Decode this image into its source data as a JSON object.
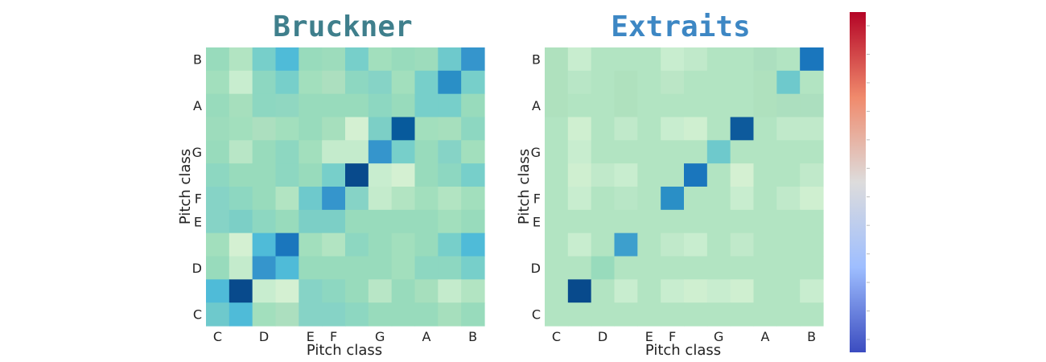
{
  "chart_data": [
    {
      "type": "heatmap",
      "title": "Bruckner",
      "title_color": "#3f7f8c",
      "xlabel": "Pitch class",
      "ylabel": "Pitch class",
      "x_tick_labels": [
        "C",
        "",
        "D",
        "",
        "E",
        "F",
        "",
        "G",
        "",
        "A",
        "",
        "B"
      ],
      "y_tick_labels_bottom_to_top": [
        "C",
        "",
        "D",
        "",
        "E",
        "F",
        "",
        "G",
        "",
        "A",
        "",
        "B"
      ],
      "rows_top_to_bottom": [
        [
          "#98dbbc",
          "#b2e4c2",
          "#77cfca",
          "#4fbbd8",
          "#98dbbc",
          "#9ddcbc",
          "#77cfca",
          "#a2dfbd",
          "#98dbbc",
          "#9ddcbc",
          "#6ec9cc",
          "#3595cc"
        ],
        [
          "#a2dfbd",
          "#c8edcf",
          "#8dd7c1",
          "#77cfca",
          "#a2dfbd",
          "#acdfbf",
          "#8dd7c1",
          "#86d3c6",
          "#a2dfbd",
          "#77cfca",
          "#2a8fc6",
          "#77cfca"
        ],
        [
          "#98dbbc",
          "#a6dfbd",
          "#8dd7c1",
          "#90d7c1",
          "#98dbbc",
          "#98dbbc",
          "#98dbbc",
          "#8dd7c1",
          "#98dbbc",
          "#77cfca",
          "#77cfca",
          "#98dbbc"
        ],
        [
          "#9ddcbc",
          "#a2dfbd",
          "#acdfbf",
          "#a2dfbd",
          "#98dbbc",
          "#a6dfbd",
          "#d4f0d2",
          "#7ccfc6",
          "#075a9c",
          "#a2dfbd",
          "#a6dfbd",
          "#8dd7c1"
        ],
        [
          "#98dbbc",
          "#b8e6c6",
          "#98dbbc",
          "#8dd7c1",
          "#a2dfbd",
          "#c4ebcc",
          "#c4ebcc",
          "#3595cc",
          "#77cfca",
          "#98dbbc",
          "#86d3c6",
          "#a2dfbd"
        ],
        [
          "#8dd7c1",
          "#98dbbc",
          "#98dbbc",
          "#8dd7c1",
          "#98dbbc",
          "#77cfca",
          "#084a8c",
          "#c8edcf",
          "#d4f0d2",
          "#98dbbc",
          "#8dd7c1",
          "#77cfca"
        ],
        [
          "#86d3c6",
          "#8dd7c1",
          "#98dbbc",
          "#b2e4c2",
          "#6ec9cc",
          "#3595cc",
          "#86d3c6",
          "#c4ebcc",
          "#b2e4c2",
          "#a2dfbd",
          "#b2e4c2",
          "#a2dfbd"
        ],
        [
          "#86d3c6",
          "#7ccfc6",
          "#8dd7c1",
          "#98dbbc",
          "#7ccfc6",
          "#7ccfc6",
          "#98dbbc",
          "#98dbbc",
          "#98dbbc",
          "#98dbbc",
          "#a2dfbd",
          "#98dbbc"
        ],
        [
          "#a2dfbd",
          "#d4f0d2",
          "#4fbbd8",
          "#1a76bd",
          "#a2dfbd",
          "#b2e4c2",
          "#8dd7c1",
          "#98dbbc",
          "#a2dfbd",
          "#98dbbc",
          "#77cfca",
          "#4fbbd8"
        ],
        [
          "#98dbbc",
          "#c4ebcc",
          "#3595cc",
          "#4fbbd8",
          "#98dbbc",
          "#98dbbc",
          "#98dbbc",
          "#98dbbc",
          "#a2dfbd",
          "#8dd7c1",
          "#8dd7c1",
          "#77cfca"
        ],
        [
          "#4fbbd8",
          "#084a8c",
          "#c8edcf",
          "#d4f0d2",
          "#86d3c6",
          "#8dd7c1",
          "#98dbbc",
          "#b8e6c6",
          "#98dbbc",
          "#a6dfbd",
          "#c4ebcc",
          "#b2e4c2"
        ],
        [
          "#6ec9cc",
          "#4fbbd8",
          "#a2dfbd",
          "#acdfbf",
          "#86d3c6",
          "#86d3c6",
          "#8dd7c1",
          "#98dbbc",
          "#98dbbc",
          "#98dbbc",
          "#a6dfbd",
          "#98dbbc"
        ]
      ]
    },
    {
      "type": "heatmap",
      "title": "Extraits",
      "title_color": "#3d87c4",
      "xlabel": "Pitch class",
      "ylabel": "Pitch class",
      "x_tick_labels": [
        "C",
        "",
        "D",
        "",
        "E",
        "F",
        "",
        "G",
        "",
        "A",
        "",
        "B"
      ],
      "y_tick_labels_bottom_to_top": [
        "C",
        "",
        "D",
        "",
        "E",
        "F",
        "",
        "G",
        "",
        "A",
        "",
        "B"
      ],
      "rows_top_to_bottom": [
        [
          "#afe1be",
          "#c8edcf",
          "#b2e4c2",
          "#b2e4c2",
          "#b2e4c2",
          "#c8edcf",
          "#c0e9ca",
          "#b2e4c2",
          "#b2e4c2",
          "#acdfbf",
          "#b2e4c2",
          "#1a76bd"
        ],
        [
          "#afe1be",
          "#b8e6c6",
          "#b2e4c2",
          "#afe1be",
          "#b2e4c2",
          "#bbe6c6",
          "#b2e4c2",
          "#b2e4c2",
          "#b2e4c2",
          "#afe1be",
          "#6ec9cc",
          "#b2e4c2"
        ],
        [
          "#afe1be",
          "#b2e4c2",
          "#b2e4c2",
          "#afe1be",
          "#b2e4c2",
          "#b2e4c2",
          "#b2e4c2",
          "#b2e4c2",
          "#b2e4c2",
          "#afe1be",
          "#acdfbf",
          "#acdfbf"
        ],
        [
          "#b2e4c2",
          "#cfefd0",
          "#b2e4c2",
          "#c0e9ca",
          "#b2e4c2",
          "#c8edcf",
          "#cfefd0",
          "#b2e4c2",
          "#0d5a9c",
          "#b2e4c2",
          "#c0e9ca",
          "#c0e9ca"
        ],
        [
          "#b2e4c2",
          "#c8edcf",
          "#b2e4c2",
          "#b2e4c2",
          "#b2e4c2",
          "#b2e4c2",
          "#b2e4c2",
          "#6ec9cc",
          "#b2e4c2",
          "#b2e4c2",
          "#b2e4c2",
          "#b2e4c2"
        ],
        [
          "#b2e4c2",
          "#cfefd0",
          "#c0e9ca",
          "#c8edcf",
          "#b2e4c2",
          "#b2e4c2",
          "#1a76bd",
          "#b2e4c2",
          "#d4f0d2",
          "#b2e4c2",
          "#b2e4c2",
          "#c0e9ca"
        ],
        [
          "#b2e4c2",
          "#c8edcf",
          "#b2e4c2",
          "#b8e6c6",
          "#b2e4c2",
          "#2a8fc6",
          "#b2e4c2",
          "#b2e4c2",
          "#c8edcf",
          "#b2e4c2",
          "#c0e9ca",
          "#cfefd0"
        ],
        [
          "#b2e4c2",
          "#b2e4c2",
          "#b2e4c2",
          "#b2e4c2",
          "#b2e4c2",
          "#b2e4c2",
          "#b2e4c2",
          "#b2e4c2",
          "#b2e4c2",
          "#b2e4c2",
          "#b2e4c2",
          "#b2e4c2"
        ],
        [
          "#b2e4c2",
          "#c8edcf",
          "#b2e4c2",
          "#3d9fcd",
          "#b2e4c2",
          "#c0e9ca",
          "#c8edcf",
          "#b2e4c2",
          "#c0e9ca",
          "#b2e4c2",
          "#b2e4c2",
          "#b2e4c2"
        ],
        [
          "#b2e4c2",
          "#b2e4c2",
          "#98dbbc",
          "#b2e4c2",
          "#b2e4c2",
          "#b2e4c2",
          "#b2e4c2",
          "#b2e4c2",
          "#b2e4c2",
          "#b2e4c2",
          "#b2e4c2",
          "#b2e4c2"
        ],
        [
          "#b2e4c2",
          "#084a8c",
          "#b2e4c2",
          "#c8edcf",
          "#b2e4c2",
          "#c8edcf",
          "#cfefd0",
          "#c8edcf",
          "#cfefd0",
          "#b2e4c2",
          "#b2e4c2",
          "#c8edcf"
        ],
        [
          "#b2e4c2",
          "#b2e4c2",
          "#b2e4c2",
          "#b2e4c2",
          "#b2e4c2",
          "#b2e4c2",
          "#b2e4c2",
          "#b2e4c2",
          "#b2e4c2",
          "#b2e4c2",
          "#b2e4c2",
          "#b2e4c2"
        ]
      ]
    }
  ],
  "colorbar": {
    "colormap": "coolwarm",
    "stops": [
      "#b40426",
      "#f08a6c",
      "#dddcdc",
      "#9ebeff",
      "#3b4cc0"
    ],
    "tick_count": 12
  }
}
